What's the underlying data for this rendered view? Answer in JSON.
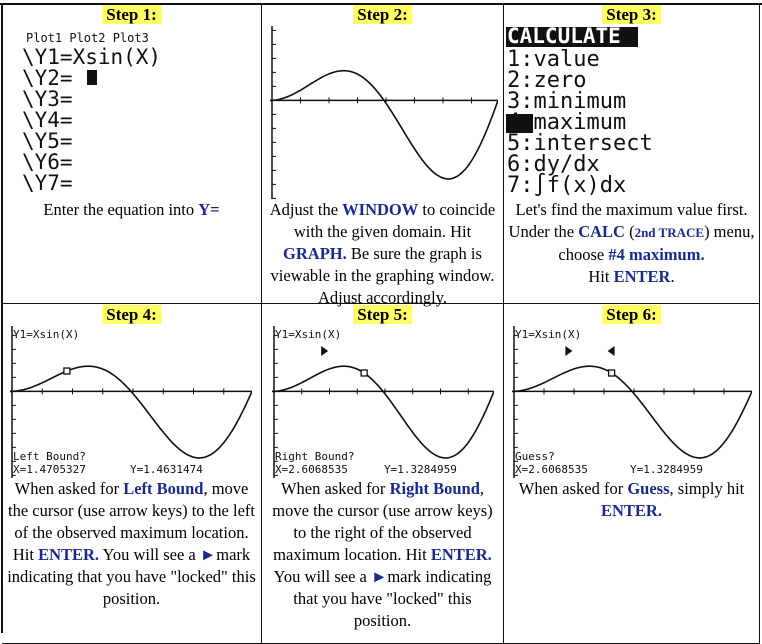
{
  "steps": [
    {
      "heading": "Step 1:",
      "screen": {
        "lines": [
          "Plot1 Plot2 Plot3",
          "\\Y1=Xsin(X)",
          "\\Y2=",
          "\\Y3=",
          "\\Y4=",
          "\\Y5=",
          "\\Y6=",
          "\\Y7="
        ]
      },
      "description": [
        "Enter the equation into ",
        "Y="
      ]
    },
    {
      "heading": "Step 2:",
      "description": [
        "Adjust the ",
        "WINDOW",
        " to coincide with the given domain. Hit ",
        "GRAPH.",
        " Be sure the graph is viewable in the graphing window.  Adjust accordingly."
      ]
    },
    {
      "heading": "Step 3:",
      "screen": {
        "title": "CALCULATE",
        "items": [
          "1:value",
          "2:zero",
          "3:minimum",
          "4:maximum",
          "5:intersect",
          "6:dy/dx",
          "7:∫f(x)dx"
        ]
      },
      "description": [
        "Let's find the maximum value first.  Under the ",
        "CALC",
        " (",
        "2nd TRACE",
        ") menu, choose ",
        "#4 maximum.",
        "Hit ",
        "ENTER",
        "."
      ]
    },
    {
      "heading": "Step 4:",
      "screen": {
        "equation": "Y1=Xsin(X)",
        "prompt": "Left Bound?",
        "x": "X=1.4705327",
        "y": "Y=1.4631474"
      },
      "description": [
        "When asked for ",
        "Left Bound",
        ", move the cursor (use arrow keys) to the left of the observed maximum location.  Hit ",
        "ENTER.",
        "  You will see a ",
        "►",
        "mark indicating that you have \"locked\" this position."
      ]
    },
    {
      "heading": "Step 5:",
      "screen": {
        "equation": "Y1=Xsin(X)",
        "prompt": "Right Bound?",
        "x": "X=2.6068535",
        "y": "Y=1.3284959"
      },
      "description": [
        "When asked for ",
        "Right Bound",
        ", move the cursor (use arrow keys) to the right of the observed maximum location.  Hit ",
        "ENTER.",
        "  You will see a ",
        "►",
        "mark indicating that you have \"locked\" this position."
      ]
    },
    {
      "heading": "Step 6:",
      "screen": {
        "equation": "Y1=Xsin(X)",
        "prompt": "Guess?",
        "x": "X=2.6068535",
        "y": "Y=1.3284959"
      },
      "description": [
        "When asked for ",
        "Guess",
        ", simply hit ",
        "ENTER."
      ]
    }
  ]
}
